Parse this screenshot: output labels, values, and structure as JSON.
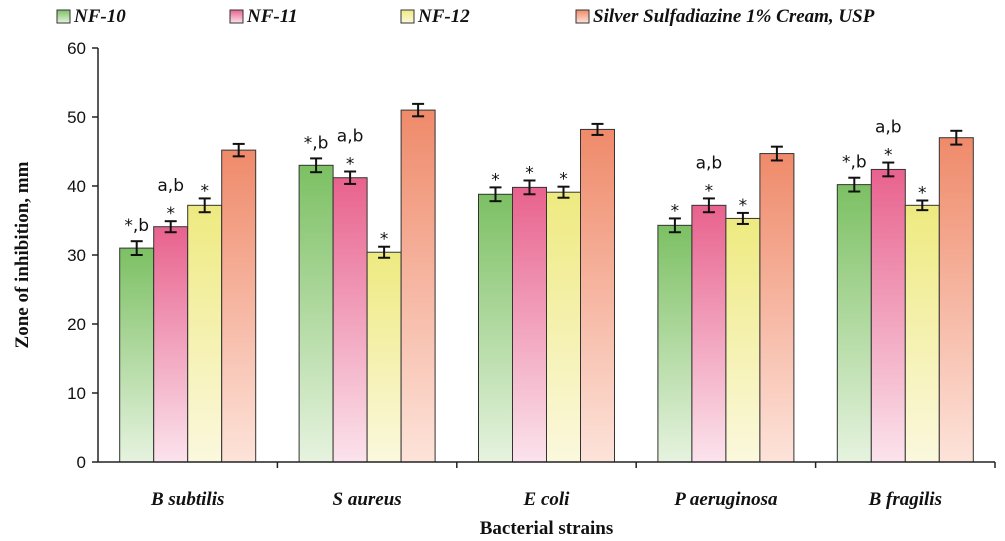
{
  "chart_data": {
    "type": "bar",
    "categories": [
      "B  subtilis",
      "S  aureus",
      "E coli",
      "P  aeruginosa",
      "B  fragilis"
    ],
    "series": [
      {
        "name": "NF-10",
        "values": [
          31.0,
          43.0,
          38.8,
          34.3,
          40.2
        ],
        "errors": [
          1.0,
          1.0,
          1.0,
          1.0,
          1.0
        ],
        "labels": [
          "*,b",
          "*,b",
          "*",
          "*",
          "*,b"
        ],
        "colors": [
          "#7cc063",
          "#e6f3df"
        ]
      },
      {
        "name": "NF-11",
        "values": [
          34.1,
          41.2,
          39.8,
          37.2,
          42.4
        ],
        "errors": [
          0.8,
          0.9,
          1.0,
          1.0,
          1.0
        ],
        "labels": [
          "a,b\n*",
          "a,b\n*",
          "*",
          "a,b\n*",
          "a,b\n*"
        ],
        "colors": [
          "#e8628e",
          "#fbe3ec"
        ]
      },
      {
        "name": "NF-12",
        "values": [
          37.2,
          30.4,
          39.1,
          35.3,
          37.2
        ],
        "errors": [
          1.0,
          0.8,
          0.8,
          0.8,
          0.7
        ],
        "labels": [
          "*",
          "*",
          "*",
          "*",
          "*"
        ],
        "colors": [
          "#eeea80",
          "#fbf8de"
        ]
      },
      {
        "name": "Silver Sulfadiazine 1% Cream, USP",
        "values": [
          45.2,
          51.0,
          48.2,
          44.7,
          47.0
        ],
        "errors": [
          0.9,
          0.9,
          0.8,
          1.0,
          1.0
        ],
        "labels": [
          "",
          "",
          "",
          "",
          ""
        ],
        "colors": [
          "#ef8a6a",
          "#fde3da"
        ]
      }
    ],
    "xlabel": "Bacterial strains",
    "ylabel": "Zone of inhibition, mm",
    "ylim": [
      0,
      60
    ],
    "yticks": [
      "0",
      "10",
      "20",
      "30",
      "40",
      "50",
      "60"
    ],
    "legend_position": "top",
    "grid": false
  }
}
